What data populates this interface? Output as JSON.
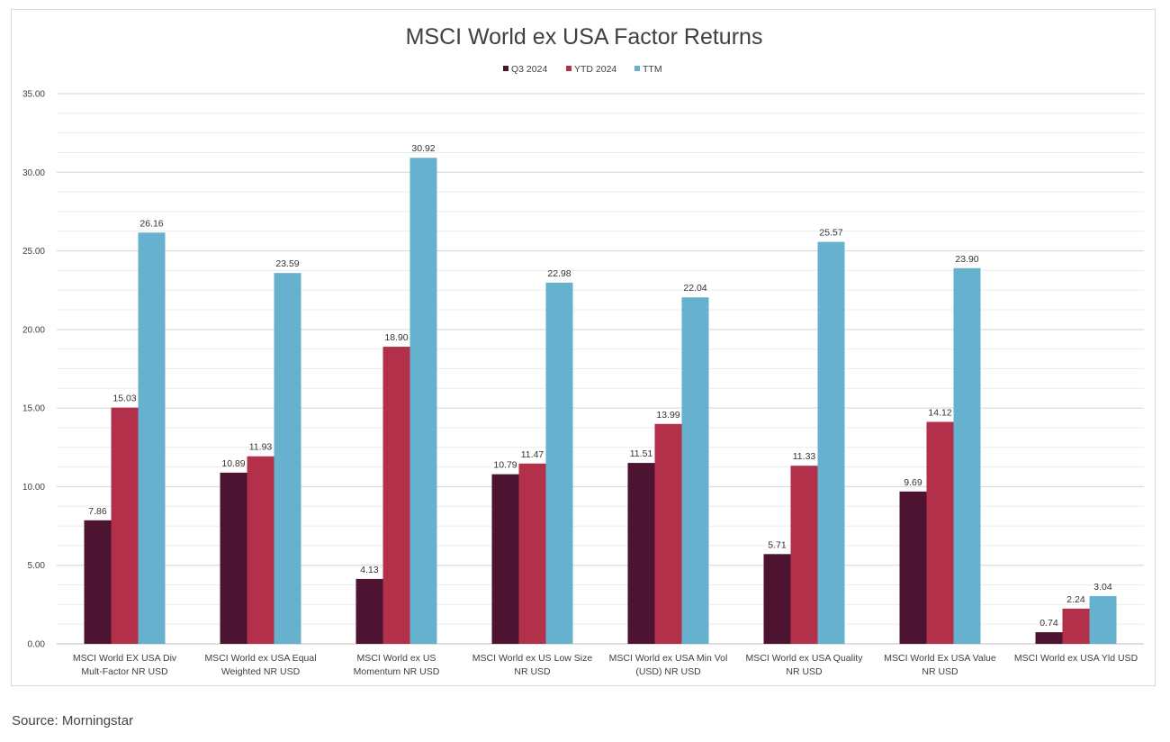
{
  "colors": {
    "q3": "#4d1431",
    "ytd": "#b3304a",
    "ttm": "#66b1cd",
    "grid": "#d9d9d9",
    "text": "#404040"
  },
  "chart_data": {
    "type": "bar",
    "title": "MSCI World ex USA Factor Returns",
    "xlabel": "",
    "ylabel": "",
    "ylim": [
      0,
      35
    ],
    "yticks": [
      "0.00",
      "5.00",
      "10.00",
      "15.00",
      "20.00",
      "25.00",
      "30.00",
      "35.00"
    ],
    "legend_position": "top-center",
    "grid": true,
    "categories": [
      [
        "MSCI World EX USA Div",
        "Mult-Factor NR USD"
      ],
      [
        "MSCI World ex USA Equal",
        "Weighted NR USD"
      ],
      [
        "MSCI World ex US",
        "Momentum NR USD"
      ],
      [
        "MSCI World ex US Low Size",
        "NR USD"
      ],
      [
        "MSCI World ex USA Min Vol",
        "(USD) NR USD"
      ],
      [
        "MSCI World ex USA Quality",
        "NR USD"
      ],
      [
        "MSCI World Ex USA Value",
        "NR USD"
      ],
      [
        "MSCI World ex USA Yld USD"
      ]
    ],
    "series": [
      {
        "name": "Q3 2024",
        "key": "q3",
        "values": [
          7.86,
          10.89,
          4.13,
          10.79,
          11.51,
          5.71,
          9.69,
          0.74
        ],
        "labels": [
          "7.86",
          "10.89",
          "4.13",
          "10.79",
          "11.51",
          "5.71",
          "9.69",
          "0.74"
        ]
      },
      {
        "name": "YTD 2024",
        "key": "ytd",
        "values": [
          15.03,
          11.93,
          18.9,
          11.47,
          13.99,
          11.33,
          14.12,
          2.24
        ],
        "labels": [
          "15.03",
          "11.93",
          "18.90",
          "11.47",
          "13.99",
          "11.33",
          "14.12",
          "2.24"
        ]
      },
      {
        "name": "TTM",
        "key": "ttm",
        "values": [
          26.16,
          23.59,
          30.92,
          22.98,
          22.04,
          25.57,
          23.9,
          3.04
        ],
        "labels": [
          "26.16",
          "23.59",
          "30.92",
          "22.98",
          "22.04",
          "25.57",
          "23.90",
          "3.04"
        ]
      }
    ]
  },
  "source": "Source: Morningstar"
}
